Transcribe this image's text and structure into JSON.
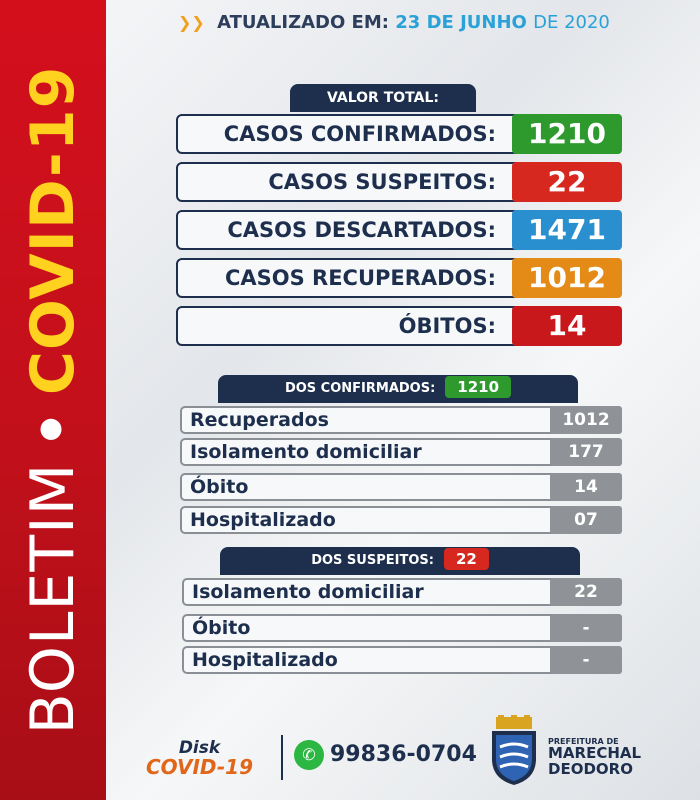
{
  "sidebar": {
    "word1": "BOLETIM",
    "separator": "•",
    "word2": "COVID-19"
  },
  "header": {
    "prefix": "ATUALIZADO EM:",
    "date": "23 DE JUNHO",
    "year": "DE 2020"
  },
  "total": {
    "title": "VALOR TOTAL:",
    "rows": [
      {
        "label": "CASOS CONFIRMADOS:",
        "value": "1210",
        "color": "#2e9a2e"
      },
      {
        "label": "CASOS SUSPEITOS:",
        "value": "22",
        "color": "#d6281f"
      },
      {
        "label": "CASOS DESCARTADOS:",
        "value": "1471",
        "color": "#2a8fcf"
      },
      {
        "label": "CASOS RECUPERADOS:",
        "value": "1012",
        "color": "#e38a17"
      },
      {
        "label": "ÓBITOS:",
        "value": "14",
        "color": "#c9181b"
      }
    ]
  },
  "confirmados": {
    "title": "DOS CONFIRMADOS:",
    "badge": "1210",
    "rows": [
      {
        "label": "Recuperados",
        "value": "1012"
      },
      {
        "label": "Isolamento domiciliar",
        "value": "177"
      },
      {
        "label": "Óbito",
        "value": "14"
      },
      {
        "label": "Hospitalizado",
        "value": "07"
      }
    ]
  },
  "suspeitos": {
    "title": "DOS SUSPEITOS:",
    "badge": "22",
    "rows": [
      {
        "label": "Isolamento domiciliar",
        "value": "22"
      },
      {
        "label": "Óbito",
        "value": "-"
      },
      {
        "label": "Hospitalizado",
        "value": "-"
      }
    ]
  },
  "footer": {
    "disk_line1": "Disk",
    "disk_line2": "COVID-19",
    "phone": "99836-0704",
    "whatsapp_icon": "whatsapp-icon",
    "pref_line1": "PREFEITURA DE",
    "pref_line2": "MARECHAL",
    "pref_line3": "DEODORO"
  }
}
